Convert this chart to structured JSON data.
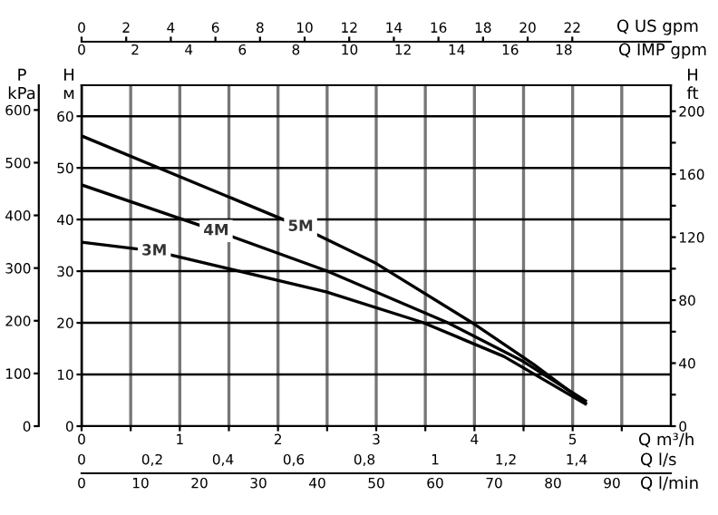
{
  "chart_data": {
    "type": "line",
    "xlabel": "Q m³/h",
    "x2label": "Q US gpm",
    "annotations": [
      "Q IMP gpm",
      "0",
      "2",
      "4",
      "6",
      "8",
      "10",
      "12",
      "14",
      "16",
      "18",
      "Q l/s",
      "0",
      "0,2",
      "0,4",
      "0,6",
      "0,8",
      "1",
      "1,2",
      "1,4",
      "Q l/min",
      "0",
      "10",
      "20",
      "30",
      "40",
      "50",
      "60",
      "70",
      "80",
      "90"
    ],
    "ylabel": "H\nм",
    "y2label": "H\nft",
    "y3label": "P\nkPa",
    "xlim": [
      0,
      6
    ],
    "xticks": [
      0,
      {
        "value": 0.5,
        "label": null
      },
      1,
      {
        "value": 1.5,
        "label": null
      },
      2,
      {
        "value": 2.5,
        "label": null
      },
      3,
      {
        "value": 3.5,
        "label": null
      },
      4,
      {
        "value": 4.5,
        "label": null
      },
      5,
      {
        "value": 5.5,
        "label": null
      }
    ],
    "x2lim": [
      0,
      26.42
    ],
    "x2ticks": [
      0,
      2,
      4,
      6,
      8,
      10,
      12,
      14,
      16,
      18,
      20,
      22
    ],
    "ylim": [
      0,
      66
    ],
    "yticks": [
      0,
      10,
      20,
      30,
      40,
      50,
      60
    ],
    "y2lim": [
      0,
      216.5
    ],
    "y2ticks": [
      0,
      {
        "value": 20,
        "label": null
      },
      40,
      {
        "value": 60,
        "label": null
      },
      80,
      {
        "value": 100,
        "label": null
      },
      120,
      {
        "value": 140,
        "label": null
      },
      160,
      {
        "value": 180,
        "label": null
      },
      200
    ],
    "y3lim": [
      0,
      647
    ],
    "y3ticks": [
      0,
      100,
      200,
      300,
      400,
      500,
      600
    ],
    "grid": true,
    "marker": "none",
    "line_style": "solid",
    "series": [
      {
        "name": "3M",
        "color": "#000000",
        "x": [
          0,
          0.74,
          2.49,
          3.47,
          4.3,
          5.13
        ],
        "values": [
          35.6,
          33.9,
          26.0,
          20.1,
          13.5,
          4.3
        ]
      },
      {
        "name": "4M",
        "color": "#000000",
        "x": [
          0,
          1.37,
          2.49,
          3.72,
          4.5,
          5.13
        ],
        "values": [
          46.7,
          37.8,
          30.1,
          20.1,
          12.5,
          4.9
        ]
      },
      {
        "name": "5M",
        "color": "#000000",
        "x": [
          0,
          2.23,
          3.0,
          3.97,
          4.6,
          5.13
        ],
        "values": [
          56.2,
          38.6,
          31.5,
          20.1,
          12.0,
          4.5
        ]
      }
    ]
  }
}
